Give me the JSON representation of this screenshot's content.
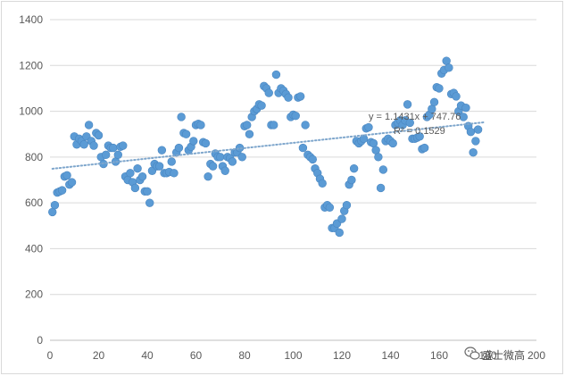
{
  "chart_data": {
    "type": "scatter",
    "title": "",
    "xlabel": "",
    "ylabel": "",
    "xlim": [
      0,
      200
    ],
    "ylim": [
      0,
      1400
    ],
    "x_ticks": [
      0,
      20,
      40,
      60,
      80,
      100,
      120,
      140,
      160,
      180,
      200
    ],
    "y_ticks": [
      0,
      200,
      400,
      600,
      800,
      1000,
      1200,
      1400
    ],
    "grid": {
      "horizontal": true,
      "vertical": false
    },
    "marker_color": "#5b9bd5",
    "trendline": {
      "type": "linear",
      "slope": 1.1431,
      "intercept": 747.76,
      "x_range": [
        1,
        179
      ],
      "color": "#5b9bd5",
      "style": "dotted",
      "equation_label": "y = 1.1431x + 747.76",
      "r2_label": "R² = 0.1529"
    },
    "points": [
      [
        1,
        560
      ],
      [
        2,
        590
      ],
      [
        3,
        645
      ],
      [
        4,
        650
      ],
      [
        5,
        655
      ],
      [
        6,
        715
      ],
      [
        7,
        720
      ],
      [
        8,
        680
      ],
      [
        9,
        690
      ],
      [
        10,
        890
      ],
      [
        11,
        855
      ],
      [
        12,
        880
      ],
      [
        13,
        870
      ],
      [
        14,
        855
      ],
      [
        15,
        890
      ],
      [
        16,
        940
      ],
      [
        17,
        870
      ],
      [
        18,
        850
      ],
      [
        19,
        905
      ],
      [
        20,
        895
      ],
      [
        21,
        800
      ],
      [
        22,
        770
      ],
      [
        23,
        810
      ],
      [
        24,
        850
      ],
      [
        25,
        840
      ],
      [
        26,
        840
      ],
      [
        27,
        780
      ],
      [
        28,
        810
      ],
      [
        29,
        845
      ],
      [
        30,
        850
      ],
      [
        31,
        715
      ],
      [
        32,
        700
      ],
      [
        33,
        730
      ],
      [
        34,
        690
      ],
      [
        35,
        665
      ],
      [
        36,
        750
      ],
      [
        37,
        700
      ],
      [
        38,
        715
      ],
      [
        39,
        650
      ],
      [
        40,
        650
      ],
      [
        41,
        600
      ],
      [
        42,
        740
      ],
      [
        43,
        770
      ],
      [
        44,
        760
      ],
      [
        45,
        760
      ],
      [
        46,
        830
      ],
      [
        47,
        730
      ],
      [
        48,
        730
      ],
      [
        49,
        735
      ],
      [
        50,
        780
      ],
      [
        51,
        730
      ],
      [
        52,
        820
      ],
      [
        53,
        840
      ],
      [
        54,
        975
      ],
      [
        55,
        905
      ],
      [
        56,
        900
      ],
      [
        57,
        830
      ],
      [
        58,
        845
      ],
      [
        59,
        870
      ],
      [
        60,
        940
      ],
      [
        61,
        945
      ],
      [
        62,
        940
      ],
      [
        63,
        865
      ],
      [
        64,
        860
      ],
      [
        65,
        715
      ],
      [
        66,
        770
      ],
      [
        67,
        760
      ],
      [
        68,
        815
      ],
      [
        69,
        800
      ],
      [
        70,
        800
      ],
      [
        71,
        760
      ],
      [
        72,
        740
      ],
      [
        73,
        800
      ],
      [
        74,
        795
      ],
      [
        75,
        780
      ],
      [
        76,
        820
      ],
      [
        77,
        820
      ],
      [
        78,
        840
      ],
      [
        79,
        800
      ],
      [
        80,
        935
      ],
      [
        81,
        940
      ],
      [
        82,
        900
      ],
      [
        83,
        975
      ],
      [
        84,
        1000
      ],
      [
        85,
        1010
      ],
      [
        86,
        1030
      ],
      [
        87,
        1025
      ],
      [
        88,
        1110
      ],
      [
        89,
        1100
      ],
      [
        90,
        1080
      ],
      [
        91,
        940
      ],
      [
        92,
        940
      ],
      [
        93,
        1160
      ],
      [
        94,
        1080
      ],
      [
        95,
        1100
      ],
      [
        96,
        1090
      ],
      [
        97,
        1075
      ],
      [
        98,
        1060
      ],
      [
        99,
        975
      ],
      [
        100,
        985
      ],
      [
        101,
        980
      ],
      [
        102,
        1060
      ],
      [
        103,
        1065
      ],
      [
        104,
        840
      ],
      [
        105,
        940
      ],
      [
        106,
        810
      ],
      [
        107,
        800
      ],
      [
        108,
        790
      ],
      [
        109,
        750
      ],
      [
        110,
        730
      ],
      [
        111,
        705
      ],
      [
        112,
        685
      ],
      [
        113,
        580
      ],
      [
        114,
        590
      ],
      [
        115,
        580
      ],
      [
        116,
        490
      ],
      [
        117,
        490
      ],
      [
        118,
        510
      ],
      [
        119,
        470
      ],
      [
        120,
        530
      ],
      [
        121,
        565
      ],
      [
        122,
        590
      ],
      [
        123,
        680
      ],
      [
        124,
        700
      ],
      [
        125,
        750
      ],
      [
        126,
        870
      ],
      [
        127,
        860
      ],
      [
        128,
        870
      ],
      [
        129,
        880
      ],
      [
        130,
        925
      ],
      [
        131,
        930
      ],
      [
        132,
        865
      ],
      [
        133,
        860
      ],
      [
        134,
        830
      ],
      [
        135,
        800
      ],
      [
        136,
        665
      ],
      [
        137,
        745
      ],
      [
        138,
        870
      ],
      [
        139,
        880
      ],
      [
        140,
        870
      ],
      [
        141,
        860
      ],
      [
        142,
        940
      ],
      [
        143,
        950
      ],
      [
        144,
        960
      ],
      [
        145,
        940
      ],
      [
        146,
        960
      ],
      [
        147,
        1030
      ],
      [
        148,
        950
      ],
      [
        149,
        880
      ],
      [
        150,
        880
      ],
      [
        151,
        885
      ],
      [
        152,
        890
      ],
      [
        153,
        835
      ],
      [
        154,
        840
      ],
      [
        155,
        975
      ],
      [
        156,
        985
      ],
      [
        157,
        1010
      ],
      [
        158,
        1040
      ],
      [
        159,
        1105
      ],
      [
        160,
        1100
      ],
      [
        161,
        1165
      ],
      [
        162,
        1180
      ],
      [
        163,
        1220
      ],
      [
        164,
        1190
      ],
      [
        165,
        1075
      ],
      [
        166,
        1080
      ],
      [
        167,
        1065
      ],
      [
        168,
        1000
      ],
      [
        169,
        1025
      ],
      [
        170,
        975
      ],
      [
        171,
        1015
      ],
      [
        172,
        935
      ],
      [
        173,
        910
      ],
      [
        174,
        820
      ],
      [
        175,
        870
      ],
      [
        176,
        920
      ]
    ]
  },
  "watermark": {
    "text": "盛士微高",
    "icon": "wechat-icon"
  }
}
